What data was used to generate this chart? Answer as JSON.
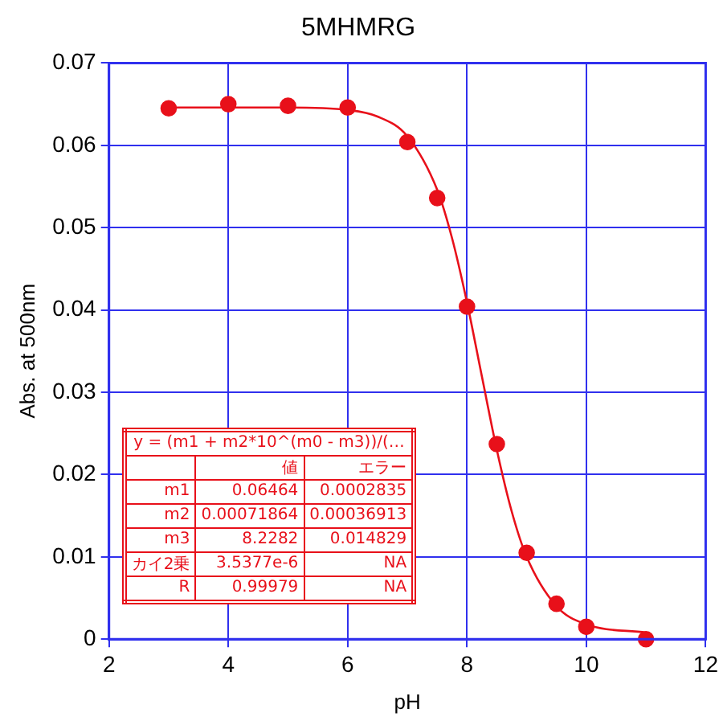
{
  "chart_data": {
    "type": "scatter",
    "title": "5MHMRG",
    "xlabel": "pH",
    "ylabel": "Abs. at 500nm",
    "xlim": [
      2,
      12
    ],
    "xticks": [
      2,
      4,
      6,
      8,
      10,
      12
    ],
    "ylim": [
      0,
      0.07
    ],
    "yticks": [
      0,
      0.01,
      0.02,
      0.03,
      0.04,
      0.05,
      0.06,
      0.07
    ],
    "grid": true,
    "legend": false,
    "marker": "circle",
    "series": [
      {
        "color": "#e8101a",
        "x": [
          3,
          4,
          5,
          6,
          7,
          7.5,
          8,
          8.5,
          9,
          9.5,
          10,
          11
        ],
        "values": [
          0.0645,
          0.065,
          0.0648,
          0.0646,
          0.0604,
          0.0536,
          0.0404,
          0.0237,
          0.0105,
          0.0043,
          0.0015,
          0.0
        ]
      },
      {
        "type": "line",
        "color": "#e8101a",
        "marker": "none",
        "line_style": "solid",
        "x": [
          3,
          5,
          6,
          6.5,
          7,
          7.5,
          7.75,
          8,
          8.25,
          8.5,
          8.75,
          9,
          9.5,
          10,
          11
        ],
        "values": [
          0.0646,
          0.0646,
          0.0643,
          0.0635,
          0.0611,
          0.0546,
          0.0487,
          0.0409,
          0.0319,
          0.023,
          0.0155,
          0.01,
          0.004,
          0.0018,
          0.0008
        ]
      }
    ],
    "annotations": [
      "y = (m1 + m2*10^(m0 - m3))/(…",
      "値",
      "エラー",
      "m1",
      "0.06464",
      "0.0002835",
      "m2",
      "0.00071864",
      "0.00036913",
      "m3",
      "8.2282",
      "0.014829",
      "カイ2乗",
      "3.5377e-6",
      "NA",
      "R",
      "0.99979",
      "NA"
    ]
  }
}
